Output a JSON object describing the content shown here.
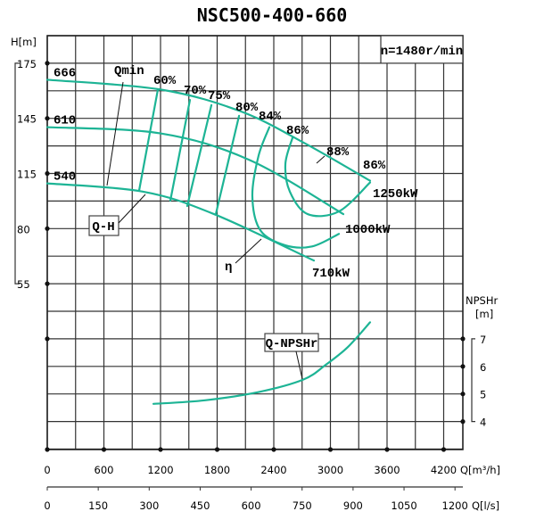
{
  "chart_data": {
    "type": "line",
    "title": "NSC500-400-660",
    "speed_label": "n=1480r/min",
    "curve_color": "#1db495",
    "grid": true,
    "x_axis": {
      "label": "Q[m³/h]",
      "range": [
        0,
        4400
      ],
      "ticks": [
        0,
        600,
        1200,
        1800,
        2400,
        3000,
        3600,
        4200
      ]
    },
    "x2_axis": {
      "label": "Q[l/s]",
      "ticks": [
        0,
        150,
        300,
        450,
        600,
        750,
        900,
        1050,
        1200
      ]
    },
    "y_axis": {
      "label": "H[m]",
      "ticks": [
        175,
        145,
        115,
        80,
        55
      ]
    },
    "y2_axis": {
      "label_line1": "NPSHr",
      "label_line2": "[m]",
      "ticks": [
        7,
        6,
        5,
        4
      ]
    },
    "head_curves": [
      {
        "name": "666",
        "points": [
          [
            0,
            166
          ],
          [
            1200,
            160.7
          ],
          [
            2050,
            148.8
          ],
          [
            2712,
            131.9
          ],
          [
            3420,
            110.4
          ]
        ]
      },
      {
        "name": "610",
        "points": [
          [
            0,
            140.2
          ],
          [
            1200,
            136.8
          ],
          [
            2145,
            122.3
          ],
          [
            3137,
            89.2
          ]
        ]
      },
      {
        "name": "540",
        "points": [
          [
            0,
            108.7
          ],
          [
            1011,
            103.5
          ],
          [
            1767,
            89.2
          ],
          [
            2825,
            65.5
          ]
        ]
      }
    ],
    "efficiency_curves": [
      {
        "name": "60%",
        "points": [
          [
            1172,
            160.7
          ],
          [
            973,
            104.1
          ]
        ]
      },
      {
        "name": "70%",
        "points": [
          [
            1512,
            155
          ],
          [
            1304,
            97.8
          ]
        ]
      },
      {
        "name": "75%",
        "points": [
          [
            1739,
            152.2
          ],
          [
            1483,
            94.3
          ]
        ]
      },
      {
        "name": "80%",
        "points": [
          [
            2032,
            146.4
          ],
          [
            1786,
            89.2
          ]
        ]
      },
      {
        "name": "84%",
        "points": [
          [
            2353,
            140.2
          ],
          [
            2239,
            124.7
          ],
          [
            2173,
            100.6
          ],
          [
            2258,
            79.2
          ],
          [
            2523,
            72.4
          ],
          [
            2806,
            71.9
          ],
          [
            3090,
            77.6
          ]
        ]
      },
      {
        "name": "86%",
        "points": [
          [
            2598,
            134.4
          ],
          [
            2523,
            120.2
          ],
          [
            2570,
            103.5
          ],
          [
            2759,
            89.2
          ],
          [
            3090,
            90.9
          ],
          [
            3420,
            109.3
          ]
        ]
      }
    ],
    "npsh_curve": {
      "name": "Q-NPSHr",
      "points": [
        [
          1125,
          4.64
        ],
        [
          1672,
          4.77
        ],
        [
          2240,
          5.07
        ],
        [
          2712,
          5.52
        ],
        [
          2948,
          6.05
        ],
        [
          3184,
          6.7
        ],
        [
          3420,
          7.6
        ]
      ]
    },
    "annotations": {
      "qmin": "Qmin",
      "qh": "Q-H",
      "eta": "η",
      "eff88": "88%",
      "eff86_end": "86%",
      "power_1250": "1250kW",
      "power_1000": "1000kW",
      "power_710": "710kW"
    }
  }
}
